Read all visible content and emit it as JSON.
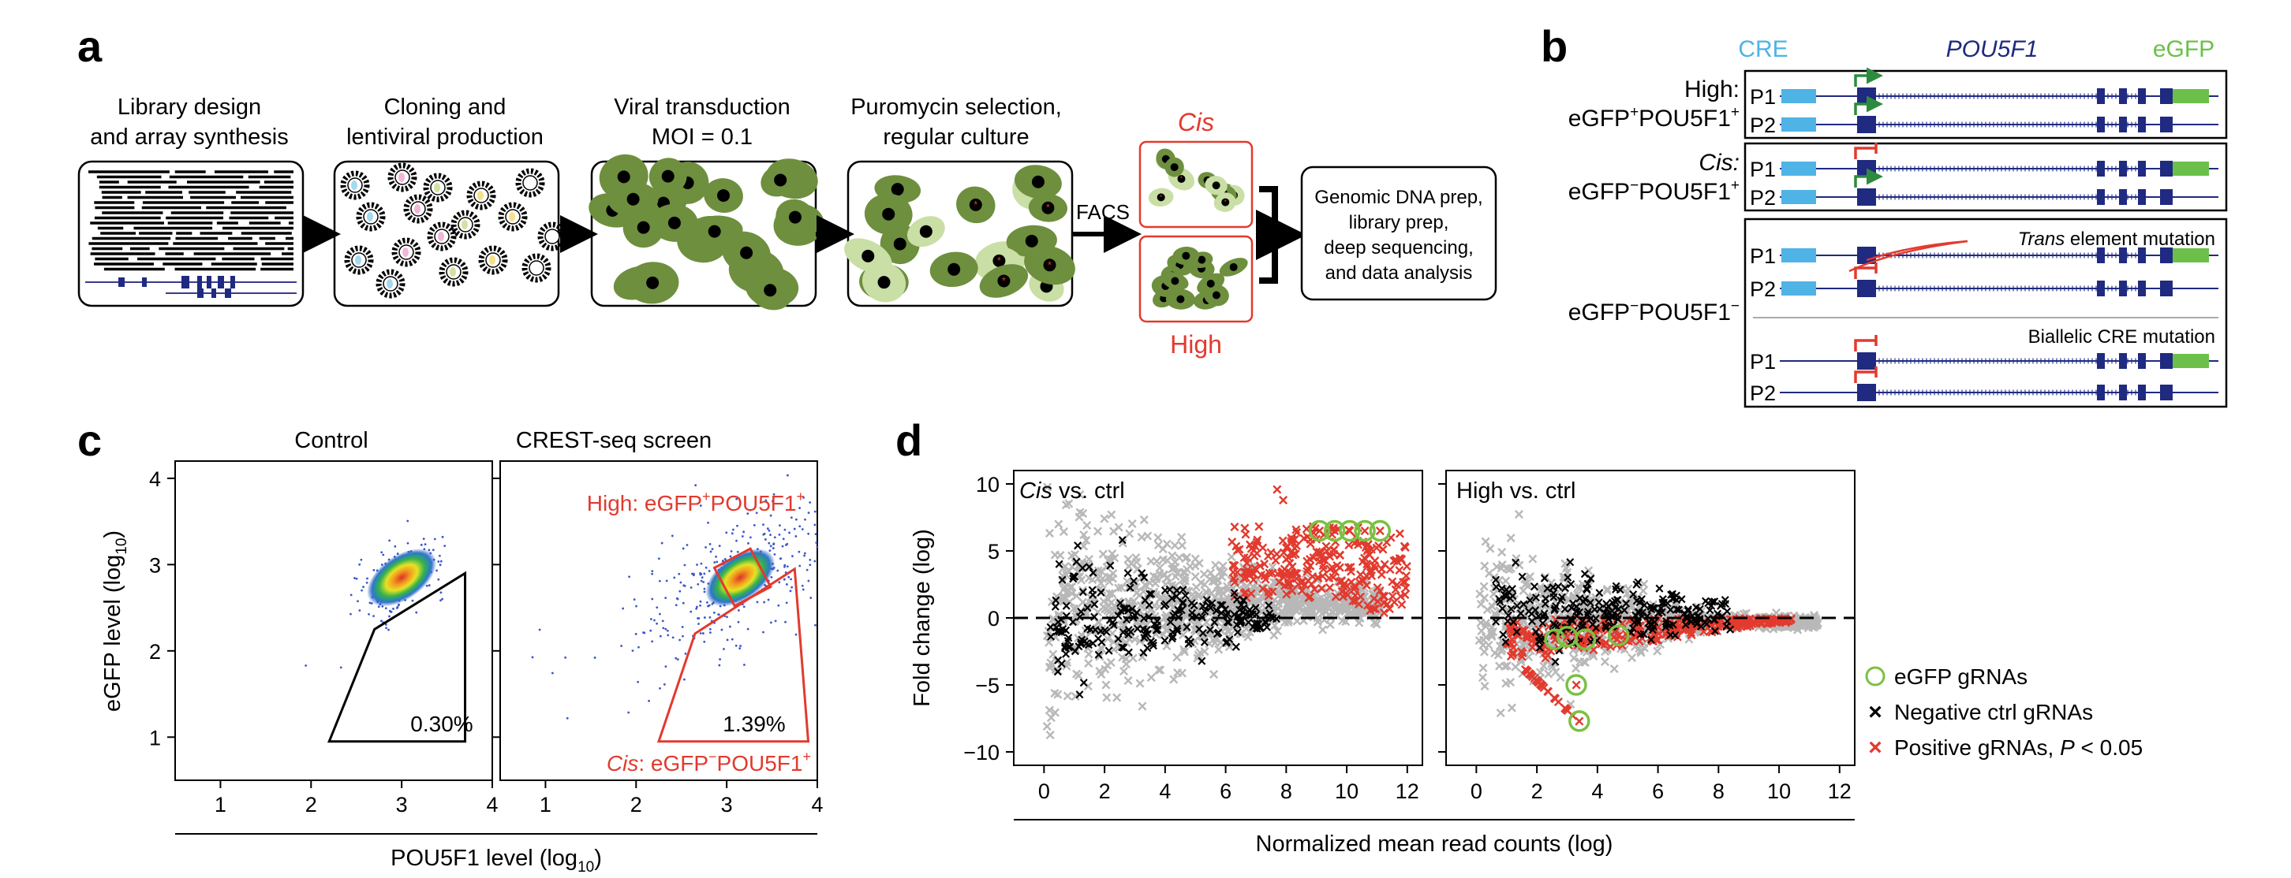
{
  "panel_a": {
    "label": "a",
    "steps": [
      {
        "line1": "Library design",
        "line2": "and array synthesis"
      },
      {
        "line1": "Cloning and",
        "line2": "lentiviral production"
      },
      {
        "line1": "Viral transduction",
        "line2": "MOI = 0.1"
      },
      {
        "line1": "Puromycin selection,",
        "line2": "regular culture"
      }
    ],
    "facs": "FACS",
    "cis_label": "Cis",
    "high_label": "High",
    "final_box": [
      "Genomic DNA prep,",
      "library prep,",
      "deep sequencing,",
      "and data analysis"
    ]
  },
  "panel_b": {
    "label": "b",
    "header": {
      "cre": "CRE",
      "gene": "POU5F1",
      "reporter": "eGFP"
    },
    "high_label": {
      "line1": "High:",
      "line2_pre": "eGFP",
      "line2_mid": "POU5F1",
      "sup": "+"
    },
    "cis_label": {
      "line1": "Cis:",
      "line2_pre": "eGFP",
      "line2_mid": "POU5F1",
      "sup1": "−",
      "sup2": "+"
    },
    "negneg_label": {
      "pre": "eGFP",
      "mid": "POU5F1",
      "sup": "−"
    },
    "p1": "P1",
    "p2": "P2",
    "trans_label": {
      "italic": "Trans",
      "rest": " element mutation"
    },
    "biallelic_label": "Biallelic CRE mutation",
    "colors": {
      "cre": "#4fb3e6",
      "gene": "#1f2a80",
      "egfp": "#6cc04a",
      "active": "#2e8b3e",
      "blocked": "#e23a2e"
    }
  },
  "panel_c": {
    "label": "c",
    "titles": [
      "Control",
      "CREST-seq screen"
    ],
    "ylabel": "eGFP level (log",
    "ylabel_sub": "10",
    "ylabel_end": ")",
    "xlabel": "POU5F1 level (log",
    "xlabel_sub": "10",
    "xlabel_end": ")",
    "xticks": [
      "1",
      "2",
      "3",
      "4"
    ],
    "yticks": [
      "1",
      "2",
      "3",
      "4"
    ],
    "control_gate_pct": "0.30%",
    "screen_gate_pct": "1.39%",
    "high_annot": {
      "pre": "High: eGFP",
      "mid": "POU5F1",
      "sup": "+"
    },
    "cis_annot": {
      "italic": "Cis",
      "pre": ": eGFP",
      "mid": "POU5F1",
      "sup1": "−",
      "sup2": "+"
    },
    "colors": {
      "gate_control": "#000000",
      "gate_screen": "#e23a2e"
    }
  },
  "panel_d": {
    "label": "d",
    "ylabel": "Fold change (log)",
    "xlabel": "Normalized mean read counts (log)",
    "xticks": [
      "0",
      "2",
      "4",
      "6",
      "8",
      "10",
      "12"
    ],
    "yticks": [
      "10",
      "5",
      "0",
      "−5",
      "−10"
    ],
    "legend": [
      {
        "label": "eGFP gRNAs",
        "color": "#7ac142",
        "marker": "circle"
      },
      {
        "label": "Negative ctrl gRNAs",
        "color": "#000000",
        "marker": "x"
      },
      {
        "label_pre": "Positive gRNAs, ",
        "label_italic": "P",
        "label_post": " < 0.05",
        "color": "#e23a2e",
        "marker": "x"
      }
    ]
  },
  "chart_data": [
    {
      "type": "scatter",
      "title": "Control",
      "xlabel": "POU5F1 level (log10)",
      "ylabel": "eGFP level (log10)",
      "xlim": [
        0.5,
        4.0
      ],
      "ylim": [
        0.5,
        4.2
      ],
      "gate": {
        "pct": "0.30%",
        "vertices": [
          [
            2.2,
            0.95
          ],
          [
            3.7,
            0.95
          ],
          [
            3.7,
            2.9
          ],
          [
            2.7,
            2.25
          ]
        ]
      },
      "population_center": [
        3.0,
        2.85
      ]
    },
    {
      "type": "scatter",
      "title": "CREST-seq screen",
      "xlabel": "POU5F1 level (log10)",
      "ylabel": "eGFP level (log10)",
      "xlim": [
        0.5,
        4.0
      ],
      "ylim": [
        0.5,
        4.2
      ],
      "gate": {
        "pct": "1.39%",
        "vertices": [
          [
            2.25,
            0.95
          ],
          [
            3.9,
            0.95
          ],
          [
            3.75,
            2.95
          ],
          [
            2.65,
            2.2
          ]
        ]
      },
      "high_gate": {
        "vertices": [
          [
            2.95,
            2.6
          ],
          [
            3.4,
            2.6
          ],
          [
            3.4,
            3.1
          ],
          [
            2.95,
            3.1
          ]
        ]
      },
      "population_center": [
        3.15,
        2.85
      ]
    },
    {
      "type": "scatter",
      "title": "Cis vs. ctrl",
      "xlabel": "Normalized mean read counts (log)",
      "ylabel": "Fold change (log)",
      "xlim": [
        -1,
        12.5
      ],
      "ylim": [
        -11,
        11
      ],
      "reference_line_y": 0,
      "egfp_points": [
        [
          9.1,
          6.5
        ],
        [
          9.6,
          6.5
        ],
        [
          10.1,
          6.5
        ],
        [
          10.6,
          6.5
        ],
        [
          11.1,
          6.5
        ]
      ]
    },
    {
      "type": "scatter",
      "title": "High vs. ctrl",
      "xlabel": "Normalized mean read counts (log)",
      "ylabel": "Fold change (log)",
      "xlim": [
        -1,
        12.5
      ],
      "ylim": [
        -11,
        11
      ],
      "reference_line_y": 0,
      "egfp_points": [
        [
          2.6,
          -1.6
        ],
        [
          3.0,
          -1.4
        ],
        [
          3.6,
          -1.6
        ],
        [
          4.7,
          -1.3
        ],
        [
          3.3,
          -5.0
        ],
        [
          3.4,
          -7.7
        ]
      ]
    }
  ]
}
